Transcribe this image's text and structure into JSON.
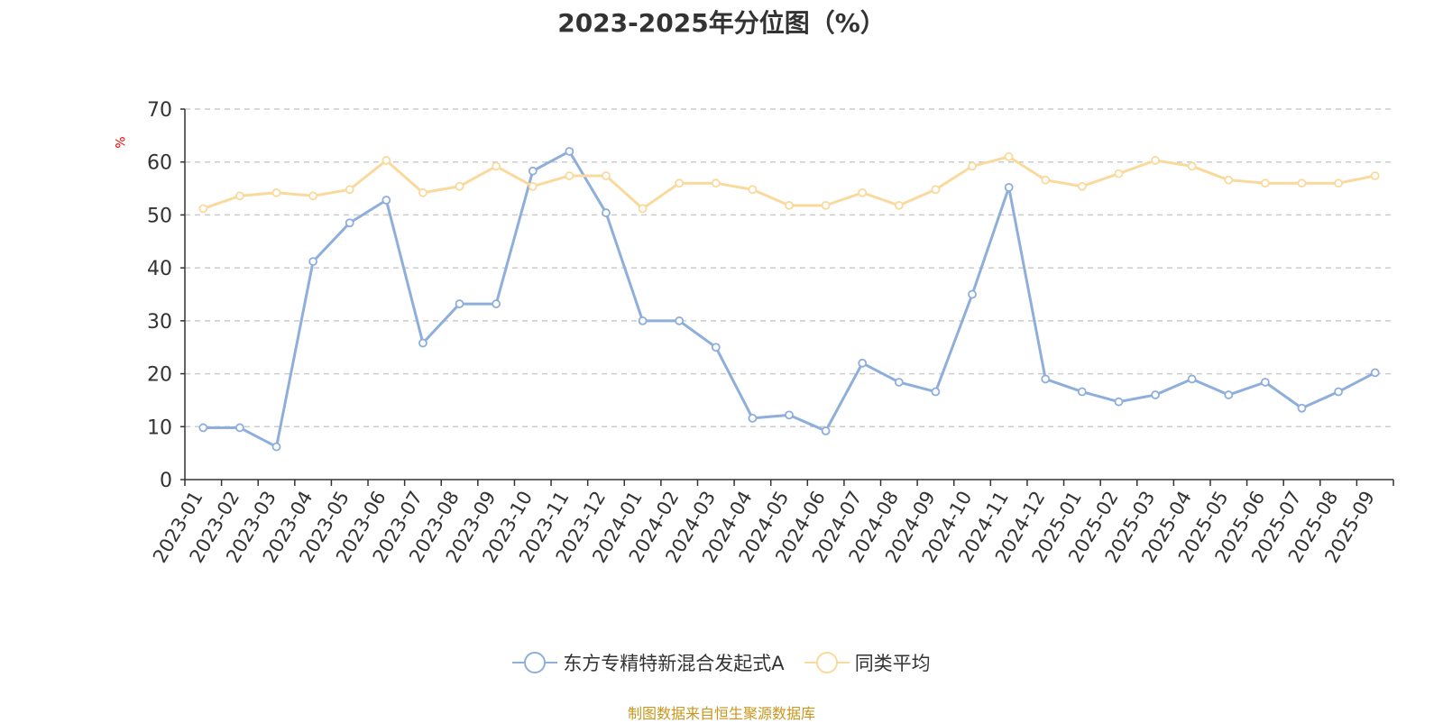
{
  "chart_data": {
    "type": "line",
    "title": "2023-2025年分位图（%）",
    "ylabel": "%",
    "ylim": [
      0,
      70
    ],
    "yticks": [
      0,
      10,
      20,
      30,
      40,
      50,
      60,
      70
    ],
    "grid": true,
    "legend_position": "bottom",
    "categories": [
      "2023-01",
      "2023-02",
      "2023-03",
      "2023-04",
      "2023-05",
      "2023-06",
      "2023-07",
      "2023-08",
      "2023-09",
      "2023-10",
      "2023-11",
      "2023-12",
      "2024-01",
      "2024-02",
      "2024-03",
      "2024-04",
      "2024-05",
      "2024-06",
      "2024-07",
      "2024-08",
      "2024-09",
      "2024-10",
      "2024-11",
      "2024-12",
      "2025-01",
      "2025-02",
      "2025-03",
      "2025-04",
      "2025-05",
      "2025-06",
      "2025-07",
      "2025-08",
      "2025-09"
    ],
    "series": [
      {
        "name": "东方专精特新混合发起式A",
        "color": "#8eaedb",
        "values": [
          9.8,
          9.8,
          6.2,
          41.2,
          48.5,
          52.8,
          25.8,
          33.2,
          33.2,
          58.3,
          62.0,
          50.4,
          30.0,
          30.0,
          25.0,
          11.6,
          12.2,
          9.2,
          22.0,
          18.4,
          16.6,
          35.0,
          55.2,
          19.0,
          16.6,
          14.7,
          16.0,
          19.0,
          16.0,
          18.4,
          13.5,
          16.6,
          20.2
        ]
      },
      {
        "name": "同类平均",
        "color": "#fad99c",
        "values": [
          51.2,
          53.6,
          54.2,
          53.6,
          54.8,
          60.3,
          54.2,
          55.4,
          59.2,
          55.4,
          57.4,
          57.4,
          51.2,
          56.0,
          56.0,
          54.8,
          51.8,
          51.8,
          54.2,
          51.8,
          54.8,
          59.2,
          61.0,
          56.6,
          55.4,
          57.8,
          60.3,
          59.2,
          56.6,
          56.0,
          56.0,
          56.0,
          57.4
        ]
      }
    ],
    "source": "制图数据来自恒生聚源数据库"
  },
  "colors": {
    "unit_label": "#ff0000",
    "source_text": "#c8961e",
    "axis": "#333333",
    "grid": "#cccccc"
  }
}
